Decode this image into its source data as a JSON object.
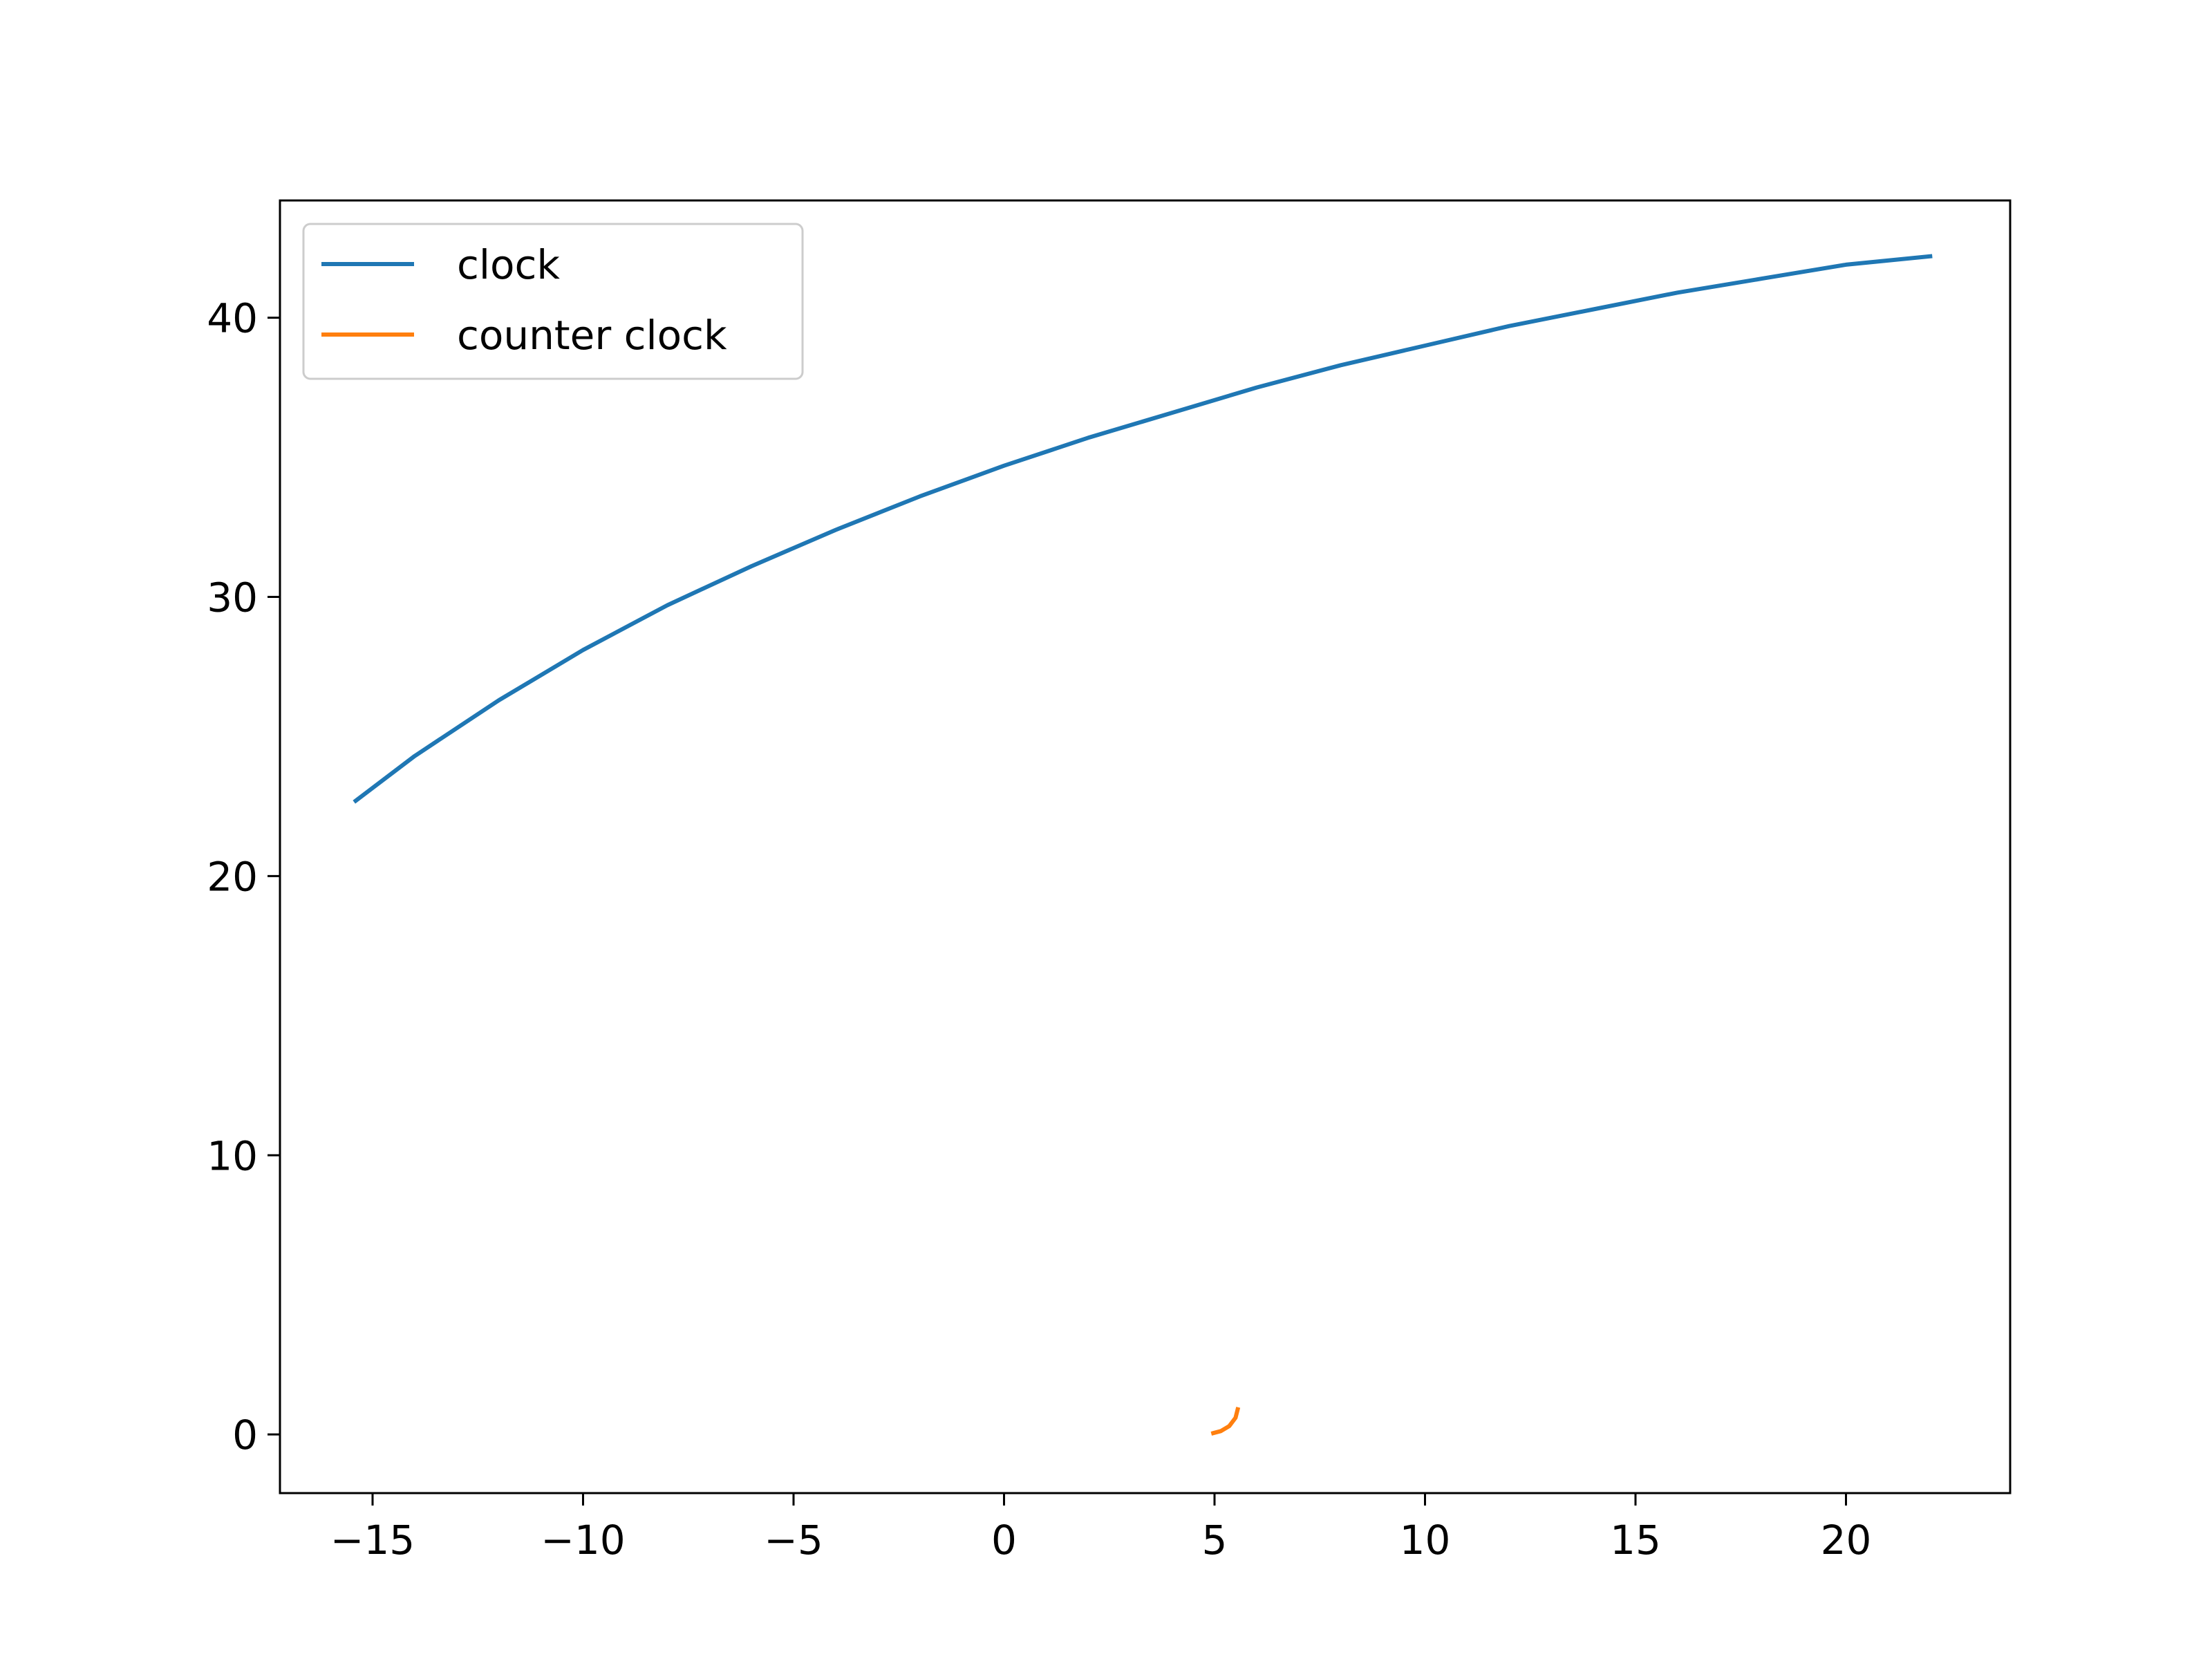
{
  "chart_data": {
    "type": "line",
    "title": "",
    "xlabel": "",
    "ylabel": "",
    "xlim": [
      -17.2,
      23.9
    ],
    "ylim": [
      -2.1,
      44.2
    ],
    "xticks": [
      -15,
      -10,
      -5,
      0,
      5,
      10,
      15,
      20
    ],
    "yticks": [
      0,
      10,
      20,
      30,
      40
    ],
    "xtick_labels": [
      "−15",
      "−10",
      "−5",
      "0",
      "5",
      "10",
      "15",
      "20"
    ],
    "ytick_labels": [
      "0",
      "10",
      "20",
      "30",
      "40"
    ],
    "grid": false,
    "legend": "upper-left",
    "series": [
      {
        "name": "clock",
        "color": "#1f77b4",
        "x": [
          -15.4,
          -14,
          -12,
          -10,
          -8,
          -6,
          -4,
          -2,
          0,
          2,
          4,
          6,
          8,
          10,
          12,
          14,
          16,
          18,
          20,
          22
        ],
        "y": [
          22.7,
          24.3,
          26.3,
          28.1,
          29.7,
          31.1,
          32.4,
          33.6,
          34.7,
          35.7,
          36.6,
          37.5,
          38.3,
          39.0,
          39.7,
          40.3,
          40.9,
          41.4,
          41.9,
          42.2
        ]
      },
      {
        "name": "counter clock",
        "color": "#ff7f0e",
        "x": [
          4.97,
          5.15,
          5.35,
          5.5,
          5.55
        ],
        "y": [
          0.05,
          0.12,
          0.3,
          0.6,
          0.9
        ]
      }
    ]
  }
}
